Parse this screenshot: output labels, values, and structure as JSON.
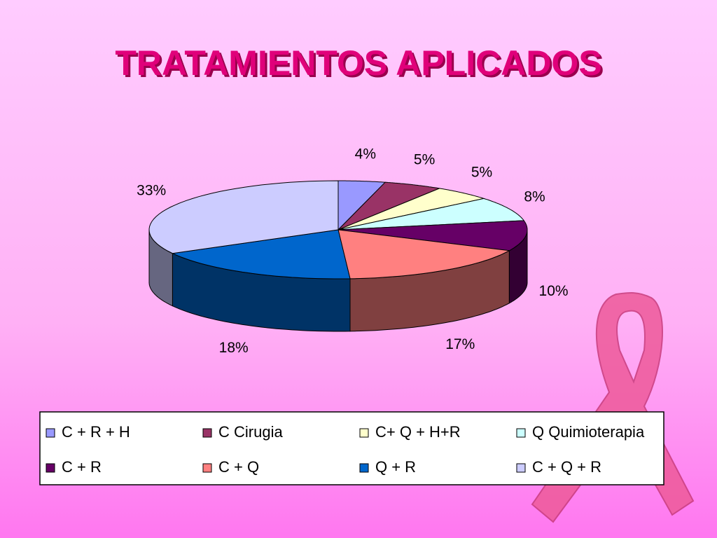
{
  "chart_data": {
    "type": "pie3d",
    "title": "TRATAMIENTOS APLICADOS",
    "categories": [
      "C + R + H",
      "C Cirugia",
      "C+ Q + H+R",
      "Q Quimioterapia",
      "C + R",
      "C + Q",
      "Q + R",
      "C + Q + R"
    ],
    "values": [
      4,
      5,
      5,
      8,
      10,
      17,
      18,
      33
    ],
    "value_labels": [
      "4%",
      "5%",
      "5%",
      "8%",
      "10%",
      "17%",
      "18%",
      "33%"
    ],
    "colors": [
      "#9999ff",
      "#993366",
      "#ffffcc",
      "#ccffff",
      "#660066",
      "#ff8080",
      "#0066cc",
      "#ccccff"
    ],
    "legend": "bottom"
  }
}
